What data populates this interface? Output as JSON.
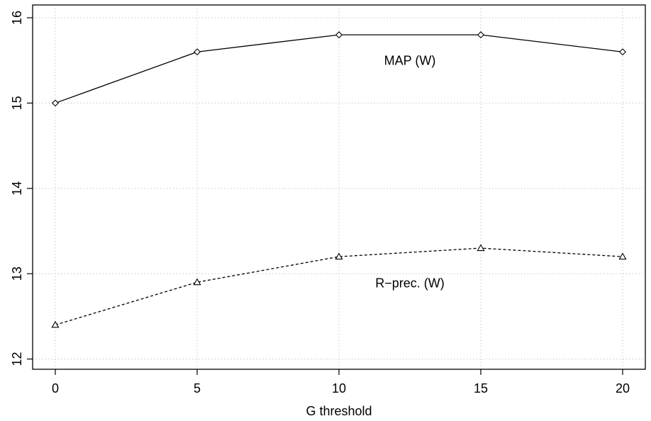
{
  "chart_data": {
    "type": "line",
    "xlabel": "G threshold",
    "ylabel": "",
    "x": [
      0,
      5,
      10,
      15,
      20
    ],
    "xticks": [
      "0",
      "5",
      "10",
      "15",
      "20"
    ],
    "yticks": [
      "12",
      "13",
      "14",
      "15",
      "16"
    ],
    "xlim": [
      -0.8,
      20.8
    ],
    "ylim": [
      11.88,
      16.15
    ],
    "grid": true,
    "series": [
      {
        "name": "MAP (W)",
        "values": [
          15.0,
          15.6,
          15.8,
          15.8,
          15.6
        ],
        "line_style": "solid",
        "marker": "diamond",
        "color": "#000000"
      },
      {
        "name": "R−prec. (W)",
        "values": [
          12.4,
          12.9,
          13.2,
          13.3,
          13.2
        ],
        "line_style": "dashed",
        "marker": "triangle",
        "color": "#000000"
      }
    ]
  }
}
